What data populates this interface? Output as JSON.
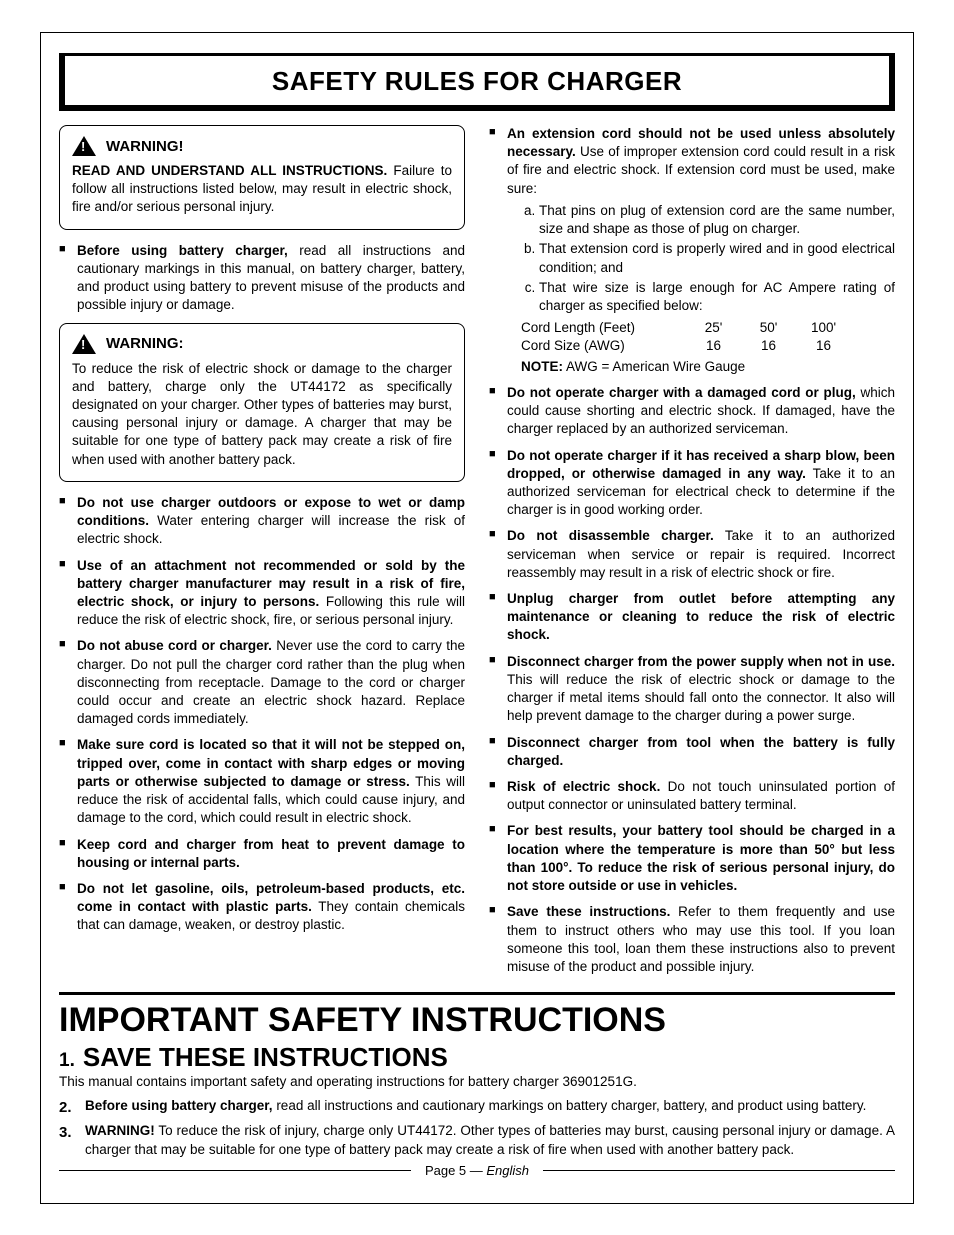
{
  "header": {
    "title": "SAFETY RULES FOR CHARGER"
  },
  "warning1": {
    "label": "WARNING!",
    "lead": "READ AND UNDERSTAND ALL INSTRUCTIONS.",
    "text": " Failure to follow all instructions listed below, may result in electric shock, fire and/or serious personal injury."
  },
  "leftTop": {
    "bold": "Before using battery charger,",
    "text": " read all instructions and cautionary markings in this manual, on battery charger, battery, and product using battery to prevent misuse of the products and possible injury or damage."
  },
  "warning2": {
    "label": "WARNING:",
    "text": "To reduce the risk of electric shock or damage to the charger and battery, charge only the UT44172 as specifically designated on your charger. Other types of batteries may burst, causing personal injury or damage. A charger that may be suitable for one type of battery pack may create a risk of fire when used with another battery pack."
  },
  "left": [
    {
      "bold": "Do not use charger outdoors or expose to wet or damp conditions.",
      "text": " Water entering charger will increase the risk of electric shock."
    },
    {
      "bold": "Use of an attachment not recommended or sold by the battery charger manufacturer may result in a risk of fire, electric shock, or injury to persons.",
      "text": " Following this rule will reduce the risk of electric shock, fire, or serious personal injury."
    },
    {
      "bold": "Do not abuse cord or charger.",
      "text": " Never use the cord to carry the charger. Do not pull the charger cord rather than the plug when disconnecting from receptacle. Damage to the cord or charger could occur and create an electric shock hazard. Replace damaged cords immediately."
    },
    {
      "bold": "Make sure cord is located so that it will not be stepped on, tripped over, come in contact with sharp edges or moving parts or otherwise subjected to damage or stress.",
      "text": " This will reduce the risk of accidental falls, which could cause injury, and damage to the cord, which could result in electric shock."
    },
    {
      "bold": "Keep cord and charger from heat to prevent damage to housing or internal parts.",
      "text": ""
    },
    {
      "bold": "Do not let gasoline, oils, petroleum-based products, etc. come in contact with plastic parts.",
      "text": " They contain chemicals that can damage, weaken, or destroy plastic."
    }
  ],
  "rightExt": {
    "bold": "An extension cord should not be used unless absolutely necessary.",
    "text": " Use of improper extension cord could result in a risk of fire and electric shock. If extension cord must be used, make sure:",
    "subs": [
      "That pins on plug of extension cord are the same number, size and shape as those of plug on charger.",
      "That extension cord is properly wired and in good electrical condition; and",
      "That wire size is large enough for AC Ampere rating of charger as specified below:"
    ],
    "table": {
      "rows": [
        {
          "label": "Cord Length (Feet)",
          "v1": "25'",
          "v2": "50'",
          "v3": "100'"
        },
        {
          "label": "Cord Size (AWG)",
          "v1": "16",
          "v2": "16",
          "v3": "16"
        }
      ],
      "noteBold": "NOTE:",
      "noteText": " AWG = American Wire Gauge"
    }
  },
  "right": [
    {
      "bold": "Do not operate charger with a damaged cord or plug,",
      "text": " which could cause shorting and electric shock. If damaged, have the charger replaced by an authorized serviceman."
    },
    {
      "bold": "Do not operate charger if it has received a sharp blow, been dropped, or otherwise damaged in any way.",
      "text": " Take it to an authorized serviceman for electrical check to determine if the charger is in good working order."
    },
    {
      "bold": "Do not disassemble charger.",
      "text": " Take it to an authorized serviceman when service or repair is required. Incorrect reassembly may result in a risk of electric shock or fire."
    },
    {
      "bold": "Unplug charger from outlet before attempting any maintenance or cleaning to reduce the risk of electric shock.",
      "text": ""
    },
    {
      "bold": "Disconnect charger from the power supply when not in use.",
      "text": " This will reduce the risk of electric shock or damage to the charger if metal items should fall onto the connector. It also will help prevent damage to the charger during a power surge."
    },
    {
      "bold": "Disconnect charger from tool when the battery is fully charged.",
      "text": ""
    },
    {
      "bold": "Risk of electric shock.",
      "text": " Do not touch uninsulated portion of output connector or uninsulated battery terminal."
    },
    {
      "bold": "For best results, your battery tool should be charged in a location where the temperature is more than 50° but less than 100°. To reduce the risk of serious personal injury, do not store outside or use in vehicles.",
      "text": ""
    },
    {
      "bold": "Save these instructions.",
      "text": " Refer to them frequently and use them to instruct others who may use this tool. If you loan someone this tool, loan them these instructions also to prevent misuse of the product and possible injury."
    }
  ],
  "important": {
    "title": "IMPORTANT SAFETY INSTRUCTIONS",
    "save_num": "1.",
    "save_title": "SAVE THESE INSTRUCTIONS",
    "save_sub": "This manual contains important safety and operating instructions for battery charger 36901251G.",
    "items": [
      {
        "num": "2.",
        "bold": "Before using battery charger,",
        "text": " read all instructions and cautionary markings on battery charger, battery, and product using battery."
      },
      {
        "num": "3.",
        "bold": "WARNING!",
        "text": " To reduce the risk of injury, charge only UT44172. Other types of batteries may burst, causing personal injury or damage. A charger that may be suitable for one type of battery pack may create a risk of fire when used with another battery pack."
      }
    ]
  },
  "footer": {
    "page": "Page 5 — ",
    "lang": "English"
  },
  "style": {
    "background": "#ffffff",
    "text_color": "#000000",
    "border_color": "#000000",
    "font_family": "Arial, Helvetica, sans-serif",
    "title_fontsize": 26,
    "body_fontsize": 13.5,
    "important_title_fontsize": 34,
    "save_title_fontsize": 26
  }
}
